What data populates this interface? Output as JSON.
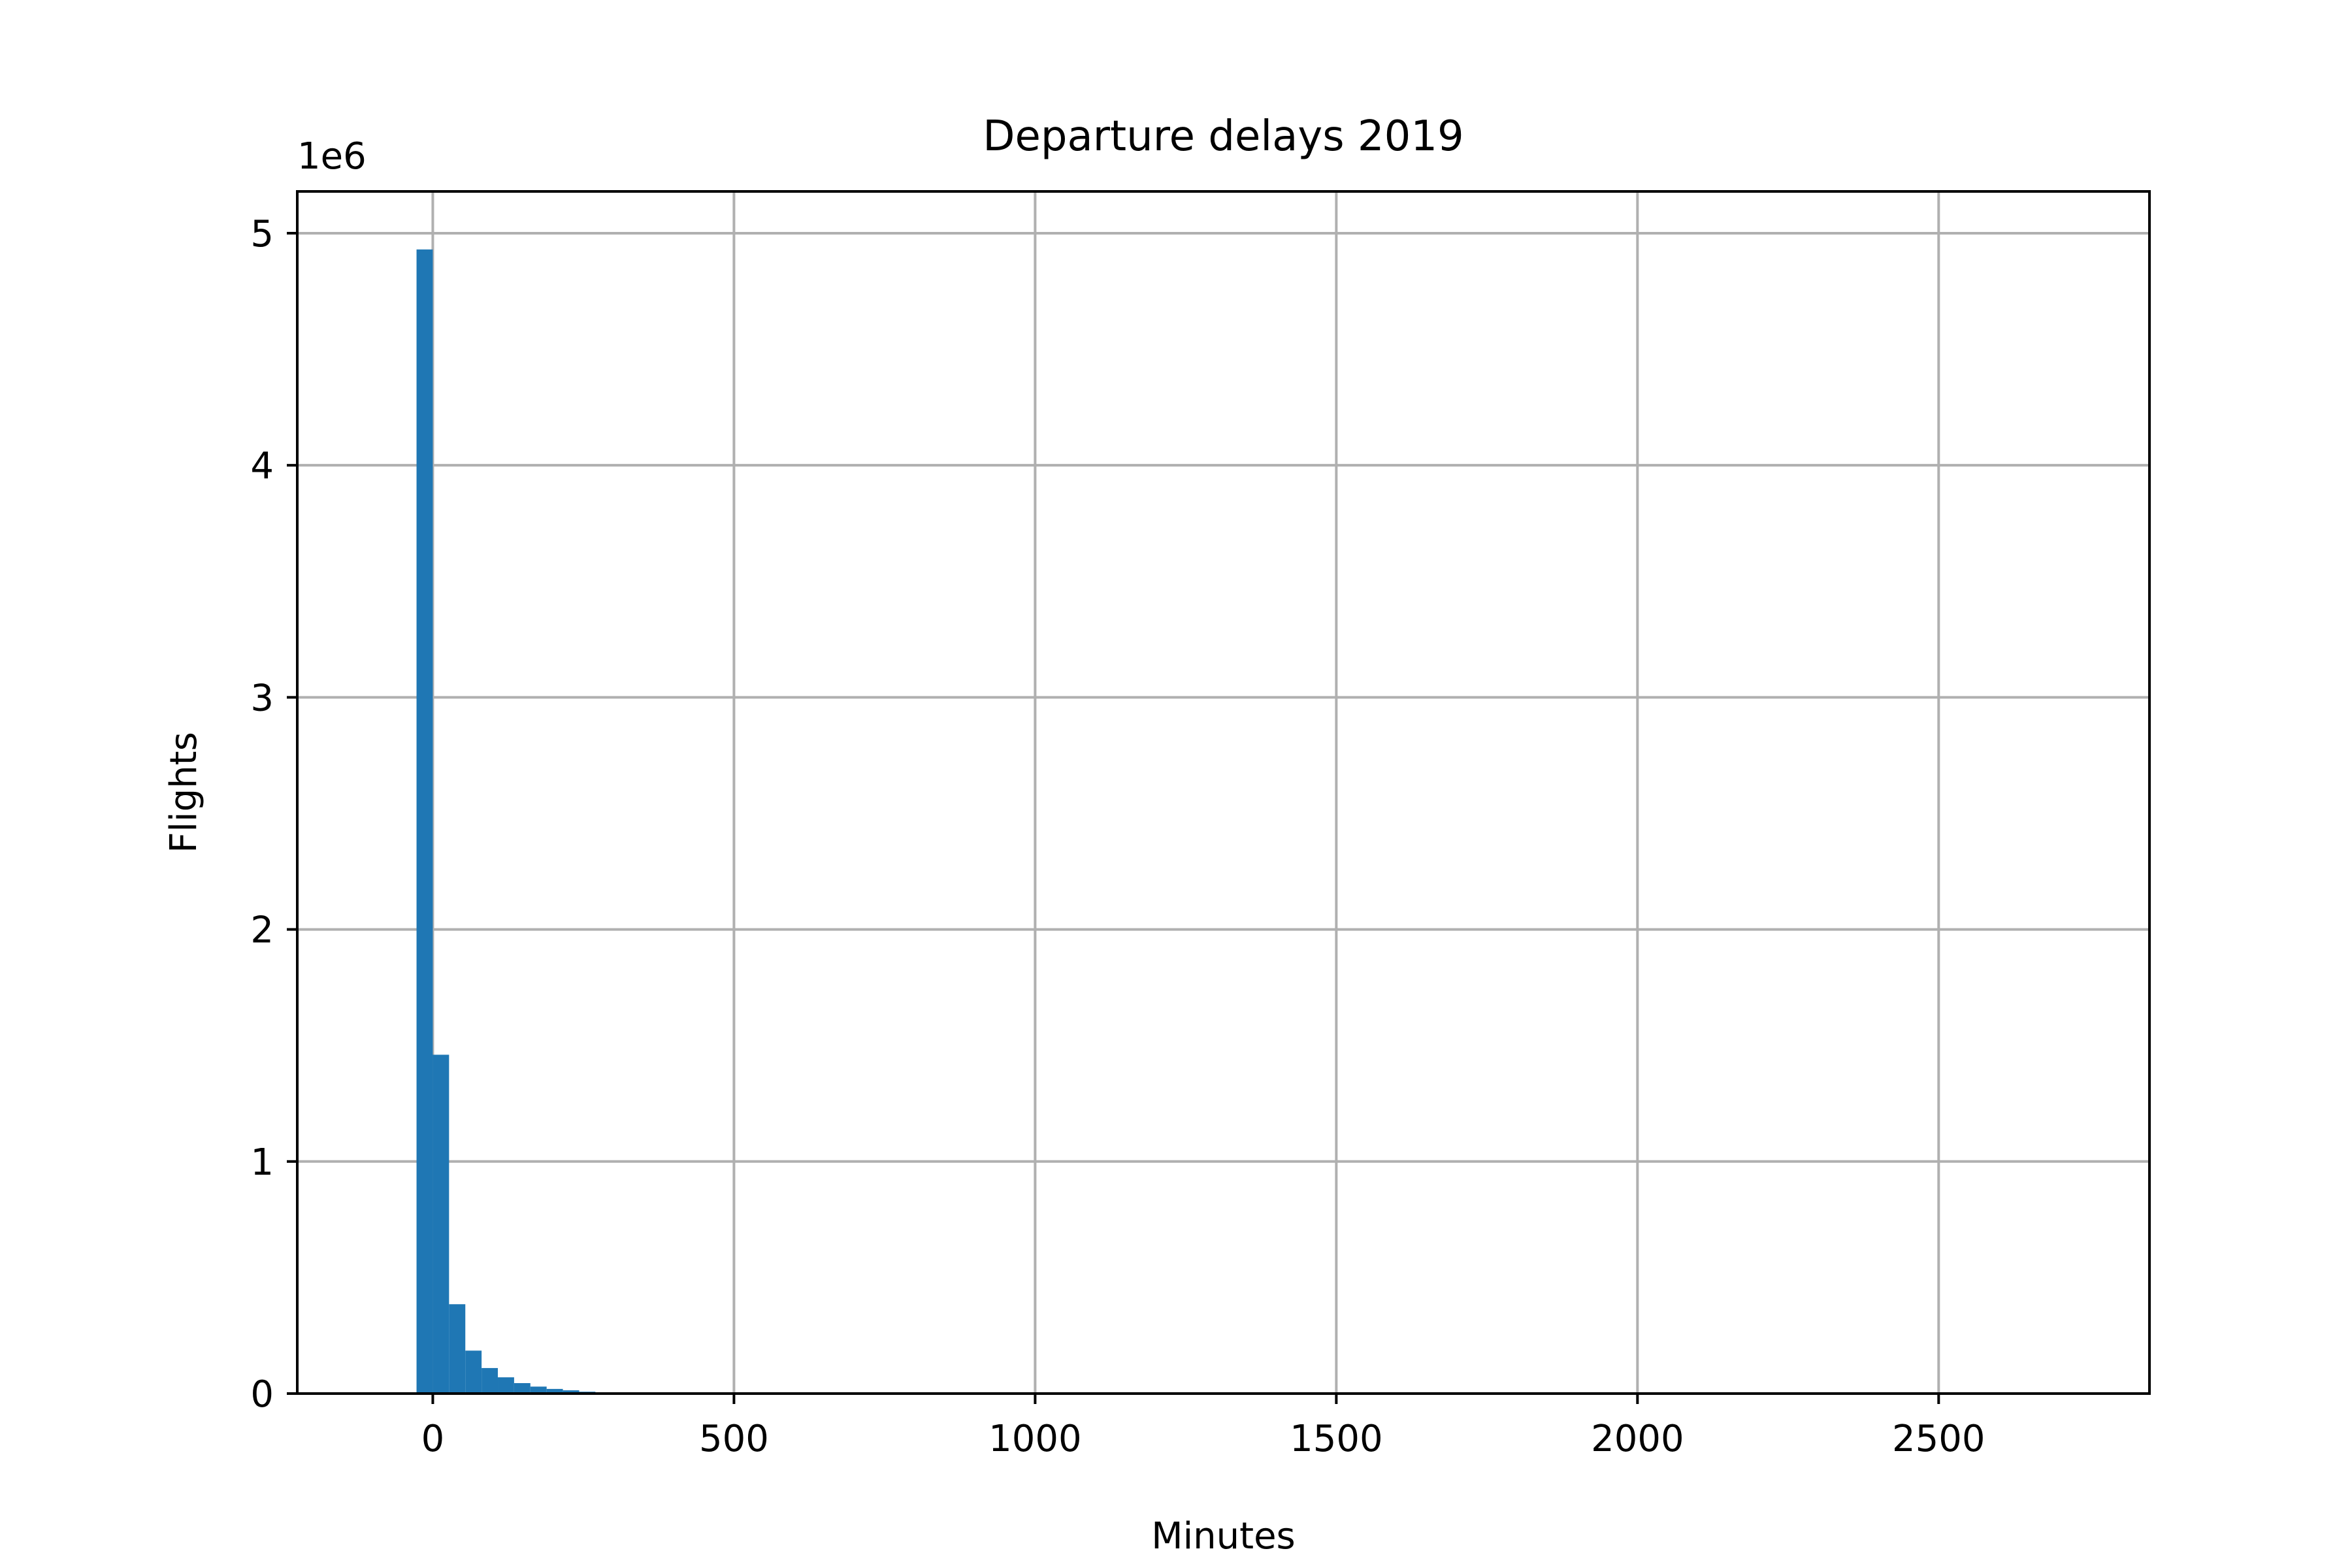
{
  "chart_data": {
    "type": "bar",
    "title": "Departure delays 2019",
    "xlabel": "Minutes",
    "ylabel": "Flights",
    "y_offset_label": "1e6",
    "xlim": [
      -225,
      2850
    ],
    "ylim": [
      0,
      5180000
    ],
    "xticks": [
      0,
      500,
      1000,
      1500,
      2000,
      2500
    ],
    "yticks": [
      0,
      1000000,
      2000000,
      3000000,
      4000000,
      5000000
    ],
    "xtick_labels": [
      "0",
      "500",
      "1000",
      "1500",
      "2000",
      "2500"
    ],
    "ytick_labels": [
      "0",
      "1",
      "2",
      "3",
      "4",
      "5"
    ],
    "grid": true,
    "bin_width": 27,
    "bins_start": [
      -27,
      0,
      27,
      54,
      81,
      108,
      135,
      162,
      189,
      216,
      243,
      270
    ],
    "values": [
      4930000,
      1460000,
      385000,
      185000,
      110000,
      70000,
      45000,
      30000,
      20000,
      14000,
      8000,
      4000
    ],
    "bar_color": "#1f77b4"
  }
}
